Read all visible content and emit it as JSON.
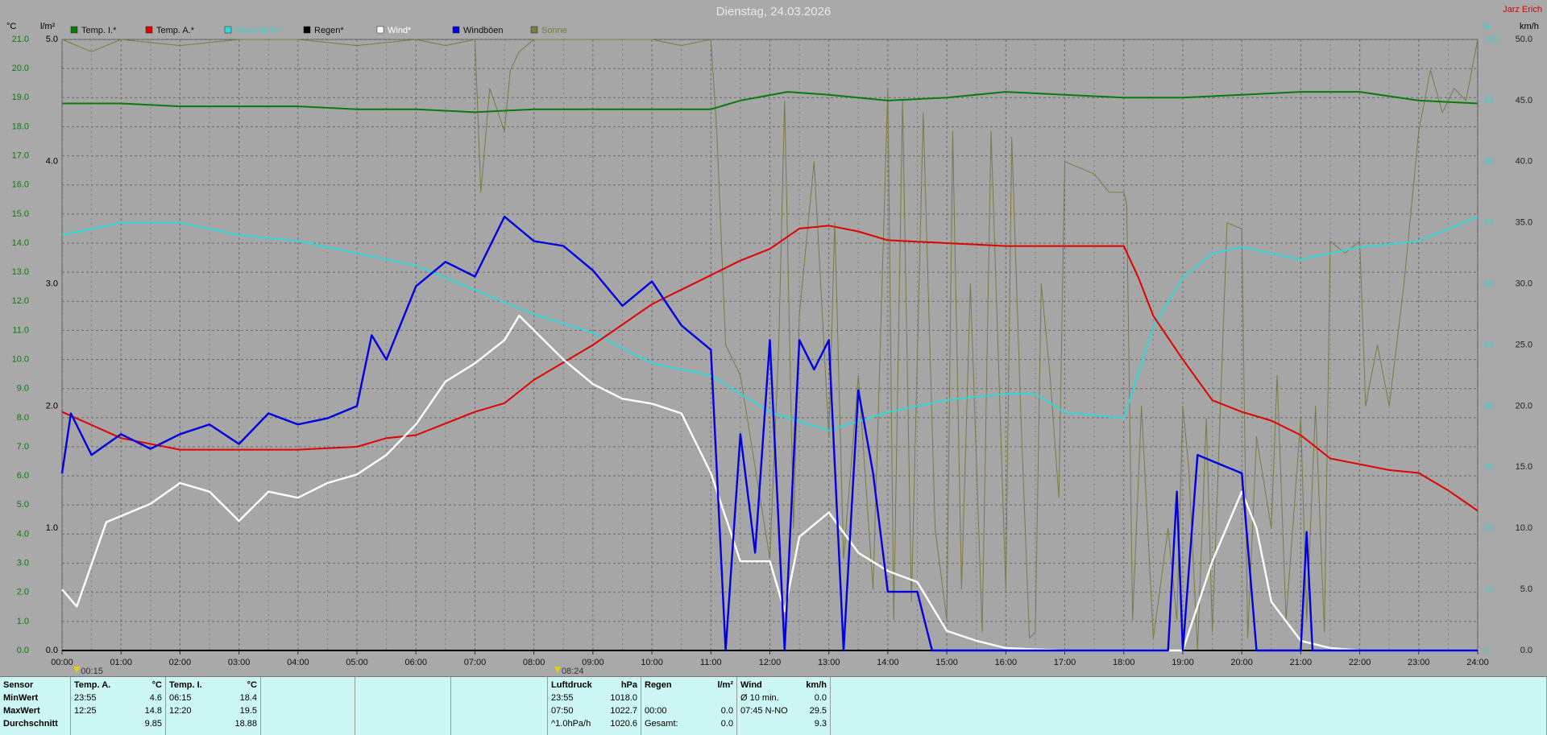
{
  "chart_data": {
    "type": "line",
    "title": "Dienstag, 24.03.2026",
    "author": "Jarz Erich",
    "axis_units": {
      "y": "°C",
      "y2": "l/m²",
      "y3": "%",
      "y4": "km/h"
    },
    "xlim": [
      0,
      24
    ],
    "xticks": [
      {
        "value": 0,
        "label": "00:00"
      },
      {
        "value": 1,
        "label": "01:00"
      },
      {
        "value": 2,
        "label": "02:00"
      },
      {
        "value": 3,
        "label": "03:00"
      },
      {
        "value": 4,
        "label": "04:00"
      },
      {
        "value": 5,
        "label": "05:00"
      },
      {
        "value": 6,
        "label": "06:00"
      },
      {
        "value": 7,
        "label": "07:00"
      },
      {
        "value": 8,
        "label": "08:00"
      },
      {
        "value": 9,
        "label": "09:00"
      },
      {
        "value": 10,
        "label": "10:00"
      },
      {
        "value": 11,
        "label": "11:00"
      },
      {
        "value": 12,
        "label": "12:00"
      },
      {
        "value": 13,
        "label": "13:00"
      },
      {
        "value": 14,
        "label": "14:00"
      },
      {
        "value": 15,
        "label": "15:00"
      },
      {
        "value": 16,
        "label": "16:00"
      },
      {
        "value": 17,
        "label": "17:00"
      },
      {
        "value": 18,
        "label": "18:00"
      },
      {
        "value": 19,
        "label": "19:00"
      },
      {
        "value": 20,
        "label": "20:00"
      },
      {
        "value": 21,
        "label": "21:00"
      },
      {
        "value": 22,
        "label": "22:00"
      },
      {
        "value": 23,
        "label": "23:00"
      },
      {
        "value": 24,
        "label": "24:00"
      }
    ],
    "ylim": [
      0,
      21
    ],
    "yticks": [
      {
        "value": 0,
        "label": "0.0"
      },
      {
        "value": 1,
        "label": "1.0"
      },
      {
        "value": 2,
        "label": "2.0"
      },
      {
        "value": 3,
        "label": "3.0"
      },
      {
        "value": 4,
        "label": "4.0"
      },
      {
        "value": 5,
        "label": "5.0"
      },
      {
        "value": 6,
        "label": "6.0"
      },
      {
        "value": 7,
        "label": "7.0"
      },
      {
        "value": 8,
        "label": "8.0"
      },
      {
        "value": 9,
        "label": "9.0"
      },
      {
        "value": 10,
        "label": "10.0"
      },
      {
        "value": 11,
        "label": "11.0"
      },
      {
        "value": 12,
        "label": "12.0"
      },
      {
        "value": 13,
        "label": "13.0"
      },
      {
        "value": 14,
        "label": "14.0"
      },
      {
        "value": 15,
        "label": "15.0"
      },
      {
        "value": 16,
        "label": "16.0"
      },
      {
        "value": 17,
        "label": "17.0"
      },
      {
        "value": 18,
        "label": "18.0"
      },
      {
        "value": 19,
        "label": "19.0"
      },
      {
        "value": 20,
        "label": "20.0"
      },
      {
        "value": 21,
        "label": "21.0"
      }
    ],
    "y2lim": [
      0,
      5
    ],
    "y2ticks": [
      {
        "value": 0,
        "label": "0.0"
      },
      {
        "value": 1,
        "label": "1.0"
      },
      {
        "value": 2,
        "label": "2.0"
      },
      {
        "value": 3,
        "label": "3.0"
      },
      {
        "value": 4,
        "label": "4.0"
      },
      {
        "value": 5,
        "label": "5.0"
      }
    ],
    "y3lim": [
      0,
      100
    ],
    "y3ticks": [
      0,
      10,
      20,
      30,
      40,
      50,
      60,
      70,
      80,
      90,
      100
    ],
    "y4lim": [
      0,
      50
    ],
    "y4ticks": [
      {
        "value": 0,
        "label": "0.0"
      },
      {
        "value": 5,
        "label": "5.0"
      },
      {
        "value": 10,
        "label": "10.0"
      },
      {
        "value": 15,
        "label": "15.0"
      },
      {
        "value": 20,
        "label": "20.0"
      },
      {
        "value": 25,
        "label": "25.0"
      },
      {
        "value": 30,
        "label": "30.0"
      },
      {
        "value": 35,
        "label": "35.0"
      },
      {
        "value": 40,
        "label": "40.0"
      },
      {
        "value": 45,
        "label": "45.0"
      },
      {
        "value": 50,
        "label": "50.0"
      }
    ],
    "grid": true,
    "annotations": [
      {
        "x": 0.25,
        "label": "00:15"
      },
      {
        "x": 8.4,
        "label": "08:24"
      }
    ],
    "series": [
      {
        "name": "Sonne",
        "color": "#7a7a44",
        "axis": "y3",
        "x": [
          0,
          0.5,
          1,
          2,
          3,
          4,
          5,
          6,
          6.5,
          7,
          7.1,
          7.25,
          7.5,
          7.6,
          7.75,
          8,
          9,
          10,
          10.5,
          11,
          11.1,
          11.25,
          11.5,
          11.75,
          12,
          12.15,
          12.25,
          12.4,
          12.5,
          12.75,
          13,
          13.1,
          13.25,
          13.5,
          13.75,
          14,
          14.1,
          14.25,
          14.4,
          14.6,
          14.8,
          15,
          15.1,
          15.25,
          15.4,
          15.6,
          15.75,
          16,
          16.1,
          16.25,
          16.4,
          16.5,
          16.6,
          16.75,
          16.9,
          17,
          17.25,
          17.5,
          17.75,
          18,
          18.05,
          18.15,
          18.3,
          18.5,
          18.75,
          18.9,
          19,
          19.1,
          19.25,
          19.4,
          19.5,
          19.75,
          20,
          20.1,
          20.25,
          20.5,
          20.6,
          20.75,
          21,
          21.1,
          21.25,
          21.4,
          21.5,
          21.75,
          22,
          22.1,
          22.3,
          22.5,
          22.75,
          23,
          23.2,
          23.4,
          23.6,
          23.8,
          24
        ],
        "values": [
          100,
          98,
          100,
          99,
          100,
          100,
          99,
          100,
          99,
          100,
          75,
          92,
          85,
          95,
          98,
          100,
          100,
          100,
          99,
          100,
          85,
          50,
          45,
          30,
          15,
          50,
          90,
          20,
          55,
          80,
          35,
          70,
          15,
          45,
          10,
          92,
          5,
          90,
          8,
          88,
          20,
          5,
          85,
          10,
          60,
          3,
          85,
          10,
          84,
          40,
          2,
          3,
          60,
          45,
          25,
          80,
          79,
          78,
          75,
          75,
          73,
          5,
          40,
          2,
          20,
          5,
          40,
          30,
          0,
          38,
          3,
          70,
          69,
          2,
          35,
          20,
          45,
          5,
          38,
          5,
          40,
          3,
          67,
          65,
          67,
          40,
          50,
          40,
          60,
          85,
          95,
          88,
          92,
          90,
          100
        ]
      },
      {
        "name": "Feuchte A.*",
        "color": "#33d6d6",
        "axis": "y3",
        "x": [
          0,
          1,
          2,
          3,
          4,
          5,
          6,
          7,
          8,
          9,
          10,
          11,
          12,
          13,
          14,
          15,
          16,
          16.5,
          17,
          18,
          18.5,
          19,
          19.5,
          20,
          21,
          22,
          23,
          24
        ],
        "values": [
          68,
          70,
          70,
          68,
          67,
          65,
          63,
          59,
          55,
          52,
          47,
          45,
          39,
          36,
          39,
          41,
          42,
          42,
          39,
          38,
          53,
          61,
          65,
          66,
          64,
          66,
          67,
          71
        ]
      },
      {
        "name": "Temp. I.*",
        "color": "#0a7a0a",
        "axis": "y",
        "x": [
          0,
          1,
          2,
          3,
          4,
          5,
          6,
          7,
          8,
          9,
          10,
          11,
          11.5,
          12.3,
          13,
          14,
          15,
          16,
          17,
          18,
          19,
          20,
          21,
          22,
          23,
          24
        ],
        "values": [
          18.8,
          18.8,
          18.7,
          18.7,
          18.7,
          18.6,
          18.6,
          18.5,
          18.6,
          18.6,
          18.6,
          18.6,
          18.9,
          19.2,
          19.1,
          18.9,
          19.0,
          19.2,
          19.1,
          19.0,
          19.0,
          19.1,
          19.2,
          19.2,
          18.9,
          18.8
        ]
      },
      {
        "name": "Temp. A.*",
        "color": "#e00000",
        "axis": "y",
        "x": [
          0,
          1,
          2,
          3,
          4,
          5,
          5.5,
          6,
          6.5,
          7,
          7.5,
          8,
          8.5,
          9,
          9.5,
          10,
          10.5,
          11,
          11.5,
          12,
          12.5,
          13,
          13.5,
          14,
          15,
          16,
          17,
          18,
          18.25,
          18.5,
          19,
          19.5,
          20,
          20.5,
          21,
          21.5,
          22,
          22.5,
          23,
          23.5,
          24
        ],
        "values": [
          8.2,
          7.3,
          6.9,
          6.9,
          6.9,
          7.0,
          7.3,
          7.4,
          7.8,
          8.2,
          8.5,
          9.3,
          9.9,
          10.5,
          11.2,
          11.9,
          12.4,
          12.9,
          13.4,
          13.8,
          14.5,
          14.6,
          14.4,
          14.1,
          14.0,
          13.9,
          13.9,
          13.9,
          12.8,
          11.5,
          10.0,
          8.6,
          8.2,
          7.9,
          7.4,
          6.6,
          6.4,
          6.2,
          6.1,
          5.5,
          4.8
        ]
      },
      {
        "name": "Regen*",
        "color": "#000000",
        "axis": "y2",
        "x": [
          0,
          24
        ],
        "values": [
          0,
          0
        ]
      },
      {
        "name": "Wind*",
        "color": "#ffffff",
        "axis": "y4",
        "x": [
          0,
          0.25,
          0.75,
          1,
          1.5,
          2,
          2.5,
          3,
          3.5,
          4,
          4.5,
          5,
          5.5,
          6,
          6.5,
          7,
          7.5,
          7.75,
          8,
          8.5,
          9,
          9.5,
          10,
          10.5,
          11,
          11.5,
          12,
          12.25,
          12.5,
          13,
          13.5,
          14,
          14.5,
          15,
          15.5,
          16,
          17,
          18,
          19,
          19.5,
          20,
          20.25,
          20.5,
          21,
          21.5,
          22,
          24
        ],
        "values": [
          5,
          3.6,
          10.5,
          11,
          12,
          13.7,
          13,
          10.6,
          13,
          12.5,
          13.7,
          14.4,
          16,
          18.5,
          22,
          23.5,
          25.4,
          27.4,
          26.2,
          23.8,
          21.8,
          20.6,
          20.2,
          19.4,
          14.5,
          7.3,
          7.3,
          3.2,
          9.3,
          11.3,
          8,
          6.5,
          5.6,
          1.6,
          0.8,
          0.2,
          0,
          0,
          0,
          7.3,
          13,
          10,
          4,
          0.8,
          0.2,
          0,
          0
        ]
      },
      {
        "name": "Windböen",
        "color": "#0000e0",
        "axis": "y4",
        "x": [
          0,
          0.15,
          0.5,
          1,
          1.5,
          2,
          2.5,
          3,
          3.5,
          4,
          4.5,
          5,
          5.25,
          5.5,
          6,
          6.5,
          7,
          7.5,
          8,
          8.5,
          9,
          9.5,
          10,
          10.5,
          11,
          11.25,
          11.5,
          11.75,
          12,
          12.25,
          12.5,
          12.75,
          13,
          13.25,
          13.5,
          13.75,
          14,
          14.5,
          14.75,
          18.75,
          18.9,
          19,
          19.25,
          20,
          20.25,
          21,
          21.1,
          21.2,
          24
        ],
        "values": [
          14.5,
          19.4,
          16,
          17.7,
          16.5,
          17.7,
          18.5,
          16.9,
          19.4,
          18.5,
          19,
          20,
          25.8,
          23.8,
          29.8,
          31.8,
          30.6,
          35.5,
          33.5,
          33.1,
          31.1,
          28.2,
          30.2,
          26.6,
          24.6,
          0,
          17.7,
          8,
          25.4,
          0,
          25.4,
          23,
          25.4,
          0,
          21.3,
          14.5,
          4.8,
          4.8,
          0,
          0,
          13,
          0,
          16,
          14.5,
          0,
          0,
          9.7,
          0,
          0
        ]
      }
    ]
  },
  "stats": {
    "row_labels": [
      "Sensor",
      "MinWert",
      "MaxWert",
      "Durchschnitt"
    ],
    "panels": [
      {
        "title": "Temp. A.",
        "unit": "°C",
        "rows": [
          [
            "23:55",
            "4.6"
          ],
          [
            "12:25",
            "14.8"
          ],
          [
            "",
            "9.85"
          ]
        ]
      },
      {
        "title": "Temp. I.",
        "unit": "°C",
        "rows": [
          [
            "06:15",
            "18.4"
          ],
          [
            "12:20",
            "19.5"
          ],
          [
            "",
            "18.88"
          ]
        ]
      },
      {
        "title": "Luftdruck",
        "unit": "hPa",
        "rows": [
          [
            "23:55",
            "1018.0"
          ],
          [
            "07:50",
            "1022.7"
          ],
          [
            "^1.0hPa/h",
            "1020.6"
          ]
        ]
      },
      {
        "title": "Regen",
        "unit": "l/m²",
        "rows": [
          [
            "",
            ""
          ],
          [
            "00:00",
            "0.0"
          ],
          [
            "Gesamt:",
            "0.0"
          ]
        ]
      },
      {
        "title": "Wind",
        "unit": "km/h",
        "rows": [
          [
            "Ø 10 min.",
            "0.0"
          ],
          [
            "07:45  N-NO",
            "29.5"
          ],
          [
            "",
            "9.3"
          ]
        ]
      }
    ]
  }
}
